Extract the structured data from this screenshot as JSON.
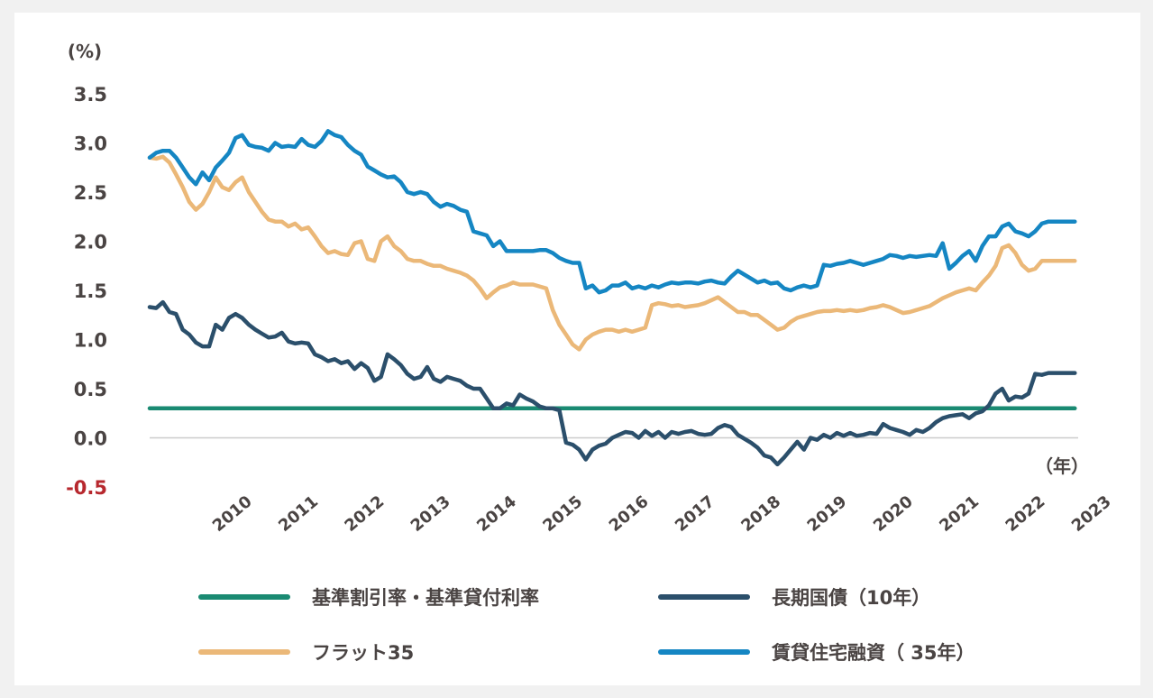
{
  "chart_data": {
    "type": "line",
    "y_unit_label": "(%)",
    "x_unit_label": "（年）",
    "ylim": [
      -0.5,
      3.5
    ],
    "yticks": [
      "3.5",
      "3.0",
      "2.5",
      "2.0",
      "1.5",
      "1.0",
      "0.5",
      "0.0",
      "-0.5"
    ],
    "ytick_values": [
      3.5,
      3.0,
      2.5,
      2.0,
      1.5,
      1.0,
      0.5,
      0.0,
      -0.5
    ],
    "xlim": [
      2009.0,
      2023.05
    ],
    "xticks": [
      "2010",
      "2011",
      "2012",
      "2013",
      "2014",
      "2015",
      "2016",
      "2017",
      "2018",
      "2019",
      "2020",
      "2021",
      "2022",
      "2023"
    ],
    "grid": false,
    "colors": {
      "base_rate": "#1a8a72",
      "jgb10": "#2b4f6b",
      "flat35": "#ebb878",
      "rental": "#1586c3",
      "negative_tick": "#b7282e"
    },
    "series": [
      {
        "key": "base_rate",
        "name": "基準割引率・基準貸付利率",
        "x": [
          2009.0,
          2023.0
        ],
        "values": [
          0.3,
          0.3
        ]
      },
      {
        "key": "jgb10",
        "name": "長期国債（10年）",
        "x": [
          2009.0,
          2009.1,
          2009.2,
          2009.3,
          2009.4,
          2009.5,
          2009.6,
          2009.7,
          2009.8,
          2009.9,
          2010.0,
          2010.1,
          2010.2,
          2010.3,
          2010.4,
          2010.5,
          2010.6,
          2010.7,
          2010.8,
          2010.9,
          2011.0,
          2011.1,
          2011.2,
          2011.3,
          2011.4,
          2011.5,
          2011.6,
          2011.7,
          2011.8,
          2011.9,
          2012.0,
          2012.1,
          2012.2,
          2012.3,
          2012.4,
          2012.5,
          2012.6,
          2012.7,
          2012.8,
          2012.9,
          2013.0,
          2013.1,
          2013.2,
          2013.3,
          2013.4,
          2013.5,
          2013.6,
          2013.7,
          2013.8,
          2013.9,
          2014.0,
          2014.1,
          2014.2,
          2014.3,
          2014.4,
          2014.5,
          2014.6,
          2014.7,
          2014.8,
          2014.9,
          2015.0,
          2015.1,
          2015.2,
          2015.3,
          2015.4,
          2015.5,
          2015.6,
          2015.7,
          2015.8,
          2015.9,
          2016.0,
          2016.1,
          2016.2,
          2016.3,
          2016.4,
          2016.5,
          2016.6,
          2016.7,
          2016.8,
          2016.9,
          2017.0,
          2017.1,
          2017.2,
          2017.3,
          2017.4,
          2017.5,
          2017.6,
          2017.7,
          2017.8,
          2017.9,
          2018.0,
          2018.1,
          2018.2,
          2018.3,
          2018.4,
          2018.5,
          2018.6,
          2018.7,
          2018.8,
          2018.9,
          2019.0,
          2019.1,
          2019.2,
          2019.3,
          2019.4,
          2019.5,
          2019.6,
          2019.7,
          2019.8,
          2019.9,
          2020.0,
          2020.1,
          2020.2,
          2020.3,
          2020.4,
          2020.5,
          2020.6,
          2020.7,
          2020.8,
          2020.9,
          2021.0,
          2021.1,
          2021.2,
          2021.3,
          2021.4,
          2021.5,
          2021.6,
          2021.7,
          2021.8,
          2021.9,
          2022.0,
          2022.1,
          2022.2,
          2022.3,
          2022.4,
          2022.5,
          2022.6,
          2022.7,
          2022.8,
          2022.9,
          2023.0
        ],
        "values": [
          1.33,
          1.32,
          1.38,
          1.28,
          1.26,
          1.1,
          1.05,
          0.97,
          0.93,
          0.93,
          1.15,
          1.1,
          1.22,
          1.26,
          1.22,
          1.15,
          1.1,
          1.06,
          1.02,
          1.03,
          1.07,
          0.98,
          0.96,
          0.97,
          0.96,
          0.85,
          0.82,
          0.78,
          0.8,
          0.76,
          0.78,
          0.7,
          0.76,
          0.71,
          0.58,
          0.62,
          0.85,
          0.8,
          0.74,
          0.65,
          0.6,
          0.62,
          0.72,
          0.6,
          0.57,
          0.62,
          0.6,
          0.58,
          0.53,
          0.5,
          0.5,
          0.4,
          0.3,
          0.3,
          0.35,
          0.33,
          0.44,
          0.4,
          0.37,
          0.32,
          0.3,
          0.3,
          0.28,
          -0.05,
          -0.07,
          -0.12,
          -0.22,
          -0.12,
          -0.08,
          -0.06,
          0.0,
          0.03,
          0.06,
          0.05,
          0.0,
          0.07,
          0.02,
          0.06,
          0.0,
          0.06,
          0.04,
          0.06,
          0.07,
          0.04,
          0.03,
          0.04,
          0.1,
          0.13,
          0.11,
          0.03,
          -0.01,
          -0.05,
          -0.1,
          -0.18,
          -0.2,
          -0.27,
          -0.2,
          -0.12,
          -0.04,
          -0.12,
          0.0,
          -0.02,
          0.03,
          0.0,
          0.05,
          0.02,
          0.05,
          0.02,
          0.03,
          0.05,
          0.04,
          0.14,
          0.1,
          0.08,
          0.06,
          0.03,
          0.08,
          0.06,
          0.1,
          0.16,
          0.2,
          0.22,
          0.23,
          0.24,
          0.2,
          0.25,
          0.27,
          0.33,
          0.45,
          0.5,
          0.38,
          0.42,
          0.41,
          0.45,
          0.65,
          0.64,
          0.66,
          0.66,
          0.66,
          0.66,
          0.66
        ],
        "x_note": ""
      },
      {
        "key": "flat35",
        "name": "フラット35",
        "x": [
          2009.0,
          2009.1,
          2009.2,
          2009.3,
          2009.4,
          2009.5,
          2009.6,
          2009.7,
          2009.8,
          2009.9,
          2010.0,
          2010.1,
          2010.2,
          2010.3,
          2010.4,
          2010.5,
          2010.6,
          2010.7,
          2010.8,
          2010.9,
          2011.0,
          2011.1,
          2011.2,
          2011.3,
          2011.4,
          2011.5,
          2011.6,
          2011.7,
          2011.8,
          2011.9,
          2012.0,
          2012.1,
          2012.2,
          2012.3,
          2012.4,
          2012.5,
          2012.6,
          2012.7,
          2012.8,
          2012.9,
          2013.0,
          2013.1,
          2013.2,
          2013.3,
          2013.4,
          2013.5,
          2013.6,
          2013.7,
          2013.8,
          2013.9,
          2014.0,
          2014.1,
          2014.2,
          2014.3,
          2014.4,
          2014.5,
          2014.6,
          2014.7,
          2014.8,
          2014.9,
          2015.0,
          2015.1,
          2015.2,
          2015.3,
          2015.4,
          2015.5,
          2015.6,
          2015.7,
          2015.8,
          2015.9,
          2016.0,
          2016.1,
          2016.2,
          2016.3,
          2016.4,
          2016.5,
          2016.6,
          2016.7,
          2016.8,
          2016.9,
          2017.0,
          2017.1,
          2017.2,
          2017.3,
          2017.4,
          2017.5,
          2017.6,
          2017.7,
          2017.8,
          2017.9,
          2018.0,
          2018.1,
          2018.2,
          2018.3,
          2018.4,
          2018.5,
          2018.6,
          2018.7,
          2018.8,
          2018.9,
          2019.0,
          2019.1,
          2019.2,
          2019.3,
          2019.4,
          2019.5,
          2019.6,
          2019.7,
          2019.8,
          2019.9,
          2020.0,
          2020.1,
          2020.2,
          2020.3,
          2020.4,
          2020.5,
          2020.6,
          2020.7,
          2020.8,
          2020.9,
          2021.0,
          2021.1,
          2021.2,
          2021.3,
          2021.4,
          2021.5,
          2021.6,
          2021.7,
          2021.8,
          2021.9,
          2022.0,
          2022.1,
          2022.2,
          2022.3,
          2022.4,
          2022.5,
          2022.6,
          2022.7,
          2022.8,
          2022.9,
          2023.0
        ],
        "values": [
          2.85,
          2.84,
          2.86,
          2.8,
          2.68,
          2.55,
          2.4,
          2.32,
          2.38,
          2.5,
          2.65,
          2.55,
          2.52,
          2.6,
          2.65,
          2.5,
          2.4,
          2.3,
          2.22,
          2.2,
          2.2,
          2.15,
          2.18,
          2.12,
          2.14,
          2.05,
          1.95,
          1.88,
          1.9,
          1.87,
          1.86,
          1.98,
          2.0,
          1.82,
          1.8,
          2.0,
          2.05,
          1.95,
          1.9,
          1.82,
          1.8,
          1.8,
          1.77,
          1.75,
          1.75,
          1.72,
          1.7,
          1.68,
          1.65,
          1.6,
          1.52,
          1.42,
          1.48,
          1.53,
          1.55,
          1.58,
          1.56,
          1.56,
          1.56,
          1.54,
          1.52,
          1.3,
          1.15,
          1.05,
          0.95,
          0.9,
          1.0,
          1.05,
          1.08,
          1.1,
          1.1,
          1.08,
          1.1,
          1.08,
          1.1,
          1.12,
          1.35,
          1.37,
          1.36,
          1.34,
          1.35,
          1.33,
          1.34,
          1.35,
          1.37,
          1.4,
          1.43,
          1.38,
          1.33,
          1.28,
          1.28,
          1.25,
          1.25,
          1.2,
          1.15,
          1.1,
          1.12,
          1.18,
          1.22,
          1.24,
          1.26,
          1.28,
          1.29,
          1.29,
          1.3,
          1.29,
          1.3,
          1.29,
          1.3,
          1.32,
          1.33,
          1.35,
          1.33,
          1.3,
          1.27,
          1.28,
          1.3,
          1.32,
          1.34,
          1.38,
          1.42,
          1.45,
          1.48,
          1.5,
          1.52,
          1.5,
          1.58,
          1.65,
          1.75,
          1.93,
          1.96,
          1.88,
          1.76,
          1.7,
          1.72,
          1.8,
          1.8,
          1.8,
          1.8,
          1.8,
          1.8
        ],
        "x_note": ""
      },
      {
        "key": "rental",
        "name": "賃貸住宅融資（ 35年）",
        "x": [
          2009.0,
          2009.1,
          2009.2,
          2009.3,
          2009.4,
          2009.5,
          2009.6,
          2009.7,
          2009.8,
          2009.9,
          2010.0,
          2010.1,
          2010.2,
          2010.3,
          2010.4,
          2010.5,
          2010.6,
          2010.7,
          2010.8,
          2010.9,
          2011.0,
          2011.1,
          2011.2,
          2011.3,
          2011.4,
          2011.5,
          2011.6,
          2011.7,
          2011.8,
          2011.9,
          2012.0,
          2012.1,
          2012.2,
          2012.3,
          2012.4,
          2012.5,
          2012.6,
          2012.7,
          2012.8,
          2012.9,
          2013.0,
          2013.1,
          2013.2,
          2013.3,
          2013.4,
          2013.5,
          2013.6,
          2013.7,
          2013.8,
          2013.9,
          2014.0,
          2014.1,
          2014.2,
          2014.3,
          2014.4,
          2014.5,
          2014.6,
          2014.7,
          2014.8,
          2014.9,
          2015.0,
          2015.1,
          2015.2,
          2015.3,
          2015.4,
          2015.5,
          2015.6,
          2015.7,
          2015.8,
          2015.9,
          2016.0,
          2016.1,
          2016.2,
          2016.3,
          2016.4,
          2016.5,
          2016.6,
          2016.7,
          2016.8,
          2016.9,
          2017.0,
          2017.1,
          2017.2,
          2017.3,
          2017.4,
          2017.5,
          2017.6,
          2017.7,
          2017.8,
          2017.9,
          2018.0,
          2018.1,
          2018.2,
          2018.3,
          2018.4,
          2018.5,
          2018.6,
          2018.7,
          2018.8,
          2018.9,
          2019.0,
          2019.1,
          2019.2,
          2019.3,
          2019.4,
          2019.5,
          2019.6,
          2019.7,
          2019.8,
          2019.9,
          2020.0,
          2020.1,
          2020.2,
          2020.3,
          2020.4,
          2020.5,
          2020.6,
          2020.7,
          2020.8,
          2020.9,
          2021.0,
          2021.1,
          2021.2,
          2021.3,
          2021.4,
          2021.5,
          2021.6,
          2021.7,
          2021.8,
          2021.9,
          2022.0,
          2022.1,
          2022.2,
          2022.3,
          2022.4,
          2022.5,
          2022.6,
          2022.7,
          2022.8,
          2022.9,
          2023.0
        ],
        "values": [
          2.85,
          2.9,
          2.92,
          2.92,
          2.85,
          2.75,
          2.65,
          2.58,
          2.7,
          2.62,
          2.75,
          2.82,
          2.9,
          3.05,
          3.08,
          2.98,
          2.96,
          2.95,
          2.92,
          3.0,
          2.96,
          2.97,
          2.96,
          3.04,
          2.98,
          2.96,
          3.02,
          3.12,
          3.08,
          3.06,
          2.98,
          2.92,
          2.88,
          2.76,
          2.72,
          2.68,
          2.65,
          2.66,
          2.6,
          2.5,
          2.48,
          2.5,
          2.48,
          2.4,
          2.35,
          2.38,
          2.36,
          2.32,
          2.3,
          2.1,
          2.08,
          2.06,
          1.95,
          2.0,
          1.9,
          1.9,
          1.9,
          1.9,
          1.9,
          1.91,
          1.91,
          1.88,
          1.83,
          1.8,
          1.78,
          1.78,
          1.52,
          1.55,
          1.48,
          1.5,
          1.55,
          1.55,
          1.58,
          1.52,
          1.54,
          1.52,
          1.55,
          1.53,
          1.56,
          1.58,
          1.57,
          1.58,
          1.58,
          1.57,
          1.59,
          1.6,
          1.58,
          1.57,
          1.64,
          1.7,
          1.66,
          1.62,
          1.58,
          1.6,
          1.57,
          1.58,
          1.52,
          1.5,
          1.53,
          1.55,
          1.53,
          1.55,
          1.76,
          1.75,
          1.77,
          1.78,
          1.8,
          1.78,
          1.76,
          1.78,
          1.8,
          1.82,
          1.86,
          1.85,
          1.83,
          1.85,
          1.84,
          1.85,
          1.86,
          1.85,
          1.98,
          1.72,
          1.78,
          1.85,
          1.9,
          1.8,
          1.95,
          2.05,
          2.05,
          2.15,
          2.18,
          2.1,
          2.08,
          2.05,
          2.1,
          2.18,
          2.2,
          2.2,
          2.2,
          2.2,
          2.2
        ],
        "x_note": ""
      }
    ],
    "legend": {
      "placement": "bottom",
      "items": [
        {
          "label": "基準割引率・基準貸付利率",
          "color": "#1a8a72"
        },
        {
          "label": "長期国債（10年）",
          "color": "#2b4f6b"
        },
        {
          "label": "フラット35",
          "color": "#ebb878"
        },
        {
          "label": "賃貸住宅融資（ 35年）",
          "color": "#1586c3"
        }
      ]
    }
  }
}
